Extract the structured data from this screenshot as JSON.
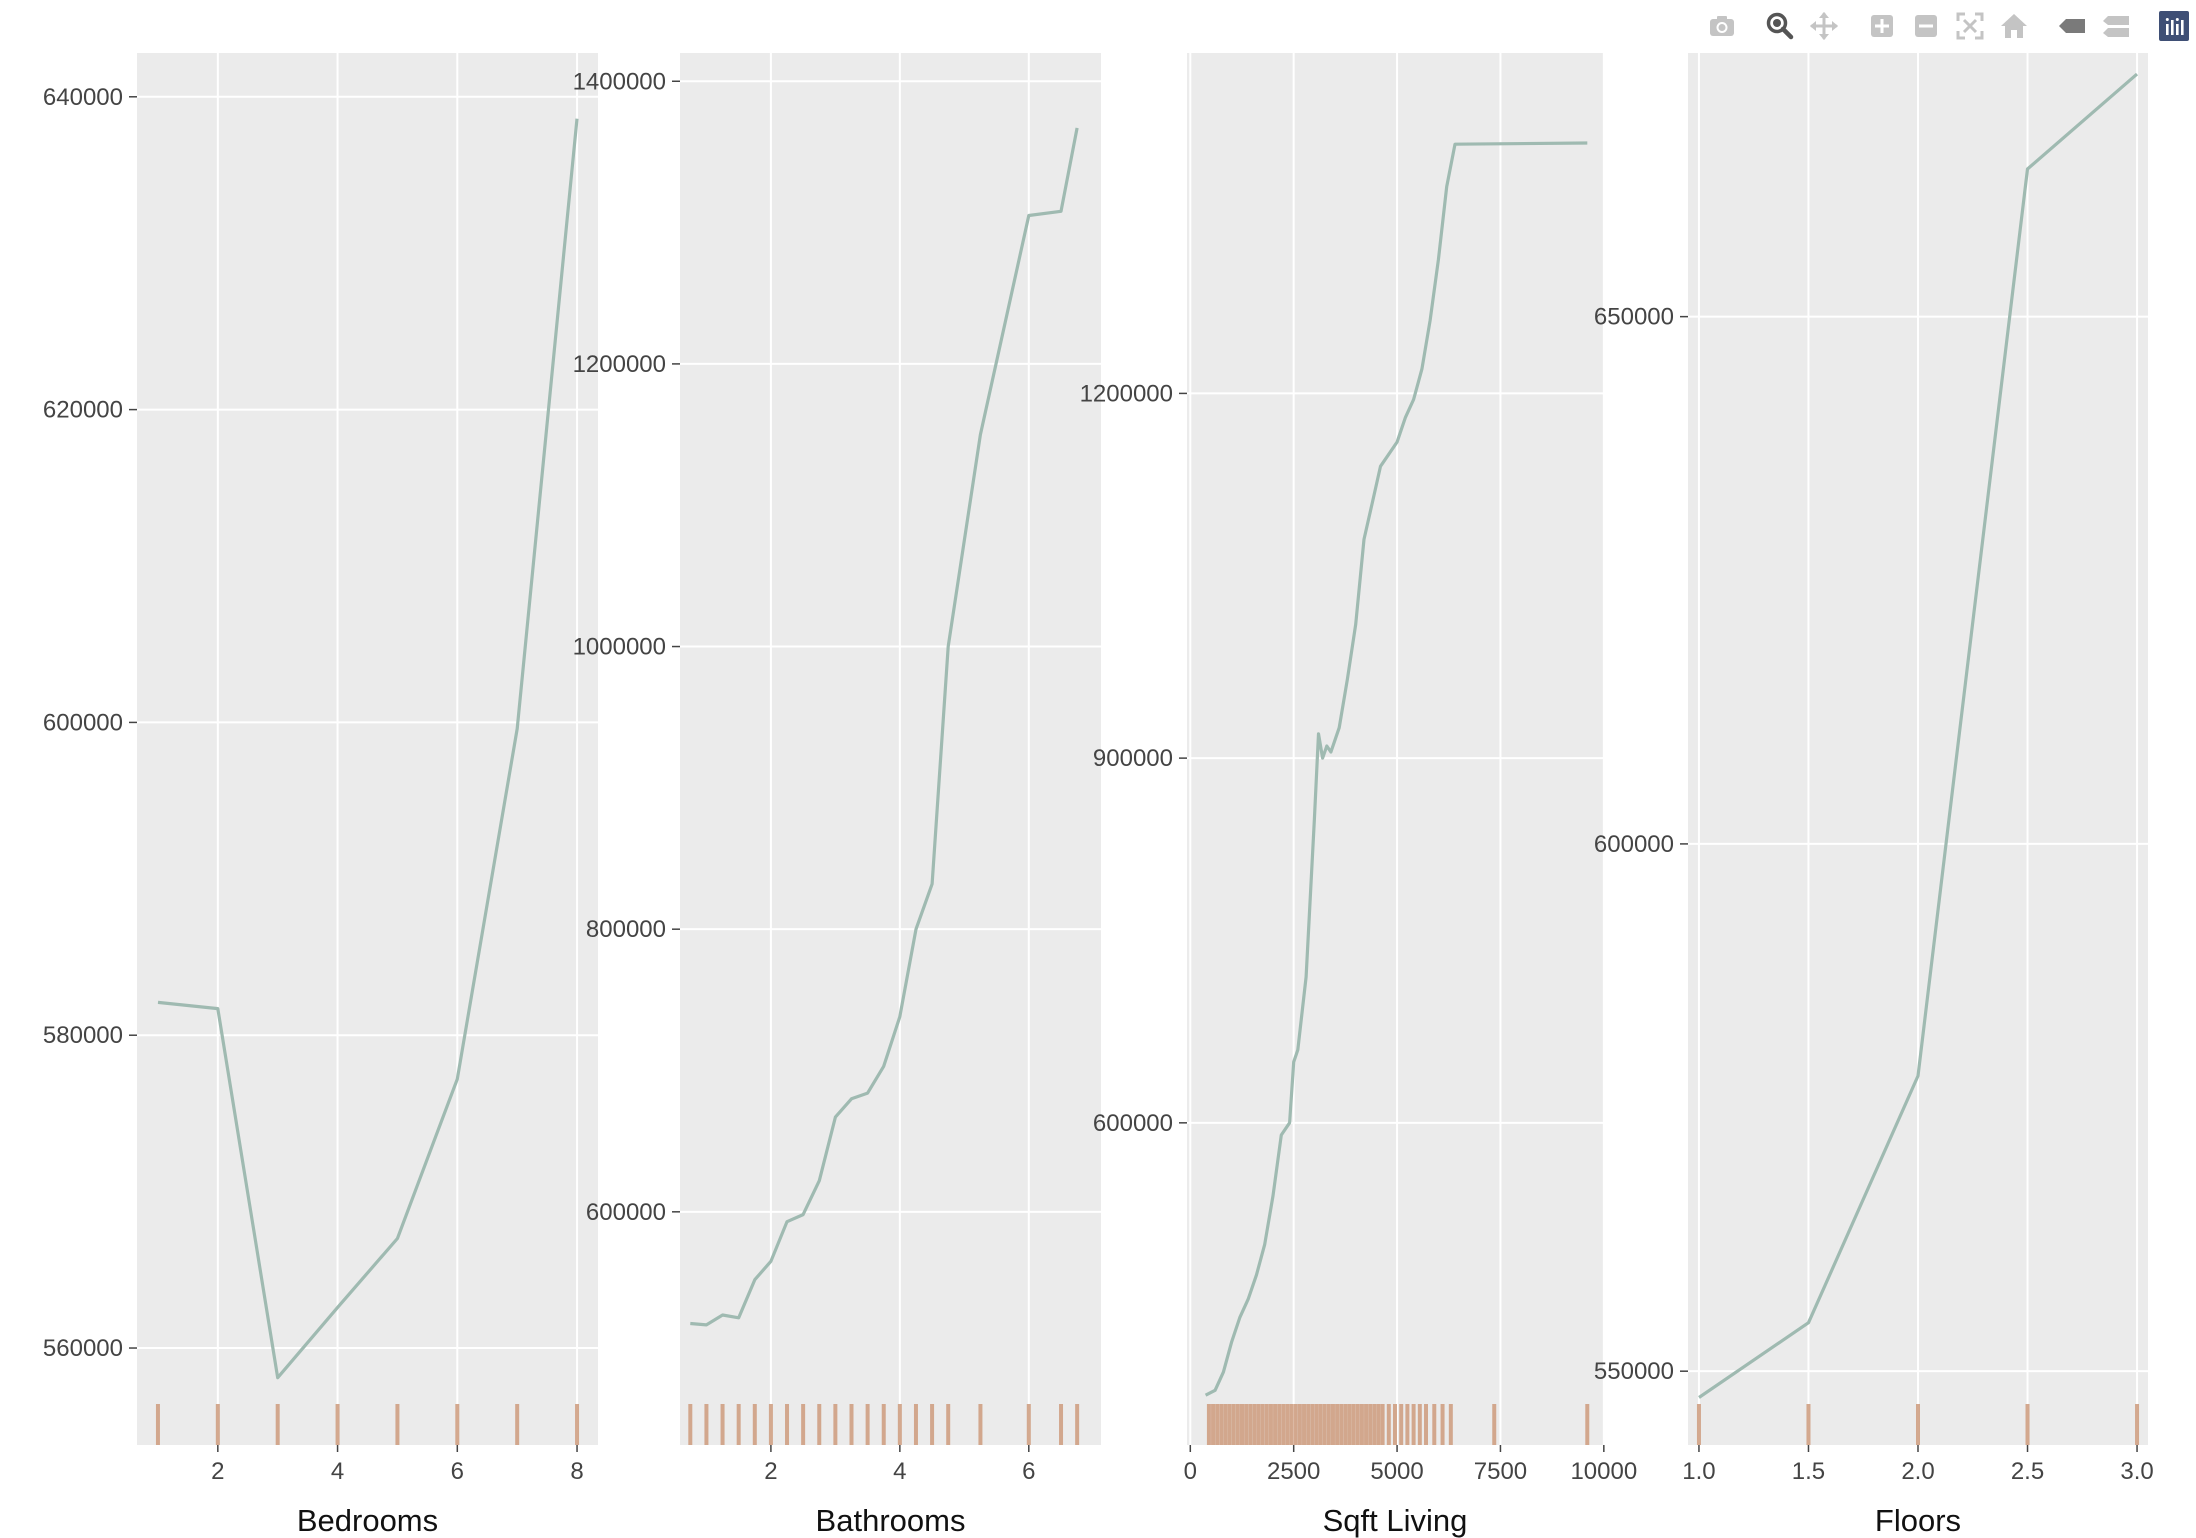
{
  "modebar": {
    "buttons": [
      {
        "name": "camera-icon",
        "label": "Download plot as a png"
      },
      {
        "name": "zoom-icon",
        "label": "Zoom"
      },
      {
        "name": "pan-icon",
        "label": "Pan"
      },
      {
        "name": "zoom-in-icon",
        "label": "Zoom in"
      },
      {
        "name": "zoom-out-icon",
        "label": "Zoom out"
      },
      {
        "name": "autoscale-icon",
        "label": "Autoscale"
      },
      {
        "name": "home-icon",
        "label": "Reset axes"
      },
      {
        "name": "hover-closest-icon",
        "label": "Show closest data on hover"
      },
      {
        "name": "hover-compare-icon",
        "label": "Compare data on hover"
      },
      {
        "name": "plotly-logo-icon",
        "label": "Produced with Plotly"
      }
    ]
  },
  "colors": {
    "line": "#9fbab1",
    "rug": "#cfa083",
    "plot_bg": "#ebebeb",
    "grid": "#ffffff"
  },
  "chart_data": [
    {
      "type": "line",
      "xlabel": "Bedrooms",
      "xlim": [
        0.65,
        8.35
      ],
      "ylim": [
        553800,
        642800
      ],
      "xticks": [
        2,
        4,
        6,
        8
      ],
      "xtick_labels": [
        "2",
        "4",
        "6",
        "8"
      ],
      "yticks": [
        560000,
        580000,
        600000,
        620000,
        640000
      ],
      "ytick_labels": [
        "560000",
        "580000",
        "600000",
        "620000",
        "640000"
      ],
      "x": [
        1,
        2,
        3,
        4,
        5,
        6,
        7,
        8
      ],
      "y": [
        582100,
        581700,
        558100,
        562600,
        567000,
        577200,
        599600,
        638600
      ],
      "rug": [
        1,
        2,
        3,
        4,
        5,
        6,
        7,
        8
      ]
    },
    {
      "type": "line",
      "xlabel": "Bathrooms",
      "xlim": [
        0.59,
        7.12
      ],
      "ylim": [
        435000,
        1420000
      ],
      "xticks": [
        2,
        4,
        6
      ],
      "xtick_labels": [
        "2",
        "4",
        "6"
      ],
      "yticks": [
        600000,
        800000,
        1000000,
        1200000,
        1400000
      ],
      "ytick_labels": [
        "600000",
        "800000",
        "1000000",
        "1200000",
        "1400000"
      ],
      "x": [
        0.75,
        1,
        1.25,
        1.5,
        1.75,
        2,
        2.25,
        2.5,
        2.75,
        3,
        3.25,
        3.5,
        3.75,
        4,
        4.25,
        4.5,
        4.75,
        5.25,
        6,
        6.5,
        6.75
      ],
      "y": [
        521000,
        520000,
        527000,
        525000,
        552000,
        565000,
        593000,
        598000,
        622000,
        667000,
        680000,
        684000,
        703000,
        738000,
        800000,
        832000,
        1000000,
        1150000,
        1305000,
        1308000,
        1367000
      ],
      "rug": [
        0.75,
        1,
        1.25,
        1.5,
        1.75,
        2,
        2.25,
        2.5,
        2.75,
        3,
        3.25,
        3.5,
        3.75,
        4,
        4.25,
        4.5,
        4.75,
        5.25,
        6,
        6.5,
        6.75
      ]
    },
    {
      "type": "line",
      "xlabel": "Sqft Living",
      "xlim": [
        -80,
        9980
      ],
      "ylim": [
        335000,
        1480000
      ],
      "xticks": [
        0,
        2500,
        5000,
        7500,
        10000
      ],
      "xtick_labels": [
        "0",
        "2500",
        "5000",
        "7500",
        "10000"
      ],
      "yticks": [
        600000,
        900000,
        1200000
      ],
      "ytick_labels": [
        "600000",
        "900000",
        "1200000"
      ],
      "x": [
        370,
        600,
        800,
        1000,
        1200,
        1400,
        1600,
        1800,
        2000,
        2200,
        2400,
        2500,
        2600,
        2800,
        3000,
        3100,
        3200,
        3300,
        3400,
        3600,
        3800,
        4000,
        4200,
        4400,
        4600,
        4800,
        5000,
        5200,
        5400,
        5600,
        5800,
        6000,
        6200,
        6400,
        9600
      ],
      "y": [
        376000,
        380000,
        395000,
        420000,
        440000,
        455000,
        475000,
        500000,
        540000,
        590000,
        600000,
        650000,
        660000,
        720000,
        850000,
        920000,
        900000,
        910000,
        905000,
        925000,
        965000,
        1010000,
        1080000,
        1110000,
        1140000,
        1150000,
        1160000,
        1180000,
        1195000,
        1220000,
        1260000,
        1310000,
        1370000,
        1405000,
        1406000
      ],
      "rug": [
        450,
        550,
        650,
        750,
        850,
        950,
        1050,
        1150,
        1250,
        1350,
        1450,
        1550,
        1650,
        1750,
        1850,
        1950,
        2050,
        2150,
        2250,
        2350,
        2450,
        2550,
        2650,
        2750,
        2850,
        2950,
        3050,
        3150,
        3250,
        3350,
        3450,
        3550,
        3650,
        3750,
        3850,
        3950,
        4050,
        4150,
        4250,
        4350,
        4450,
        4550,
        4650,
        4800,
        4950,
        5100,
        5250,
        5400,
        5550,
        5700,
        5900,
        6100,
        6300,
        7350,
        9600
      ]
    },
    {
      "type": "line",
      "xlabel": "Floors",
      "xlim": [
        0.95,
        3.05
      ],
      "ylim": [
        543000,
        675000
      ],
      "xticks": [
        1.0,
        1.5,
        2.0,
        2.5,
        3.0
      ],
      "xtick_labels": [
        "1.0",
        "1.5",
        "2.0",
        "2.5",
        "3.0"
      ],
      "yticks": [
        550000,
        600000,
        650000
      ],
      "ytick_labels": [
        "550000",
        "600000",
        "650000"
      ],
      "x": [
        1.0,
        1.5,
        2.0,
        2.5,
        3.0
      ],
      "y": [
        547500,
        554600,
        578000,
        664000,
        673000
      ],
      "rug": [
        1.0,
        1.5,
        2.0,
        2.5,
        3.0
      ]
    }
  ]
}
